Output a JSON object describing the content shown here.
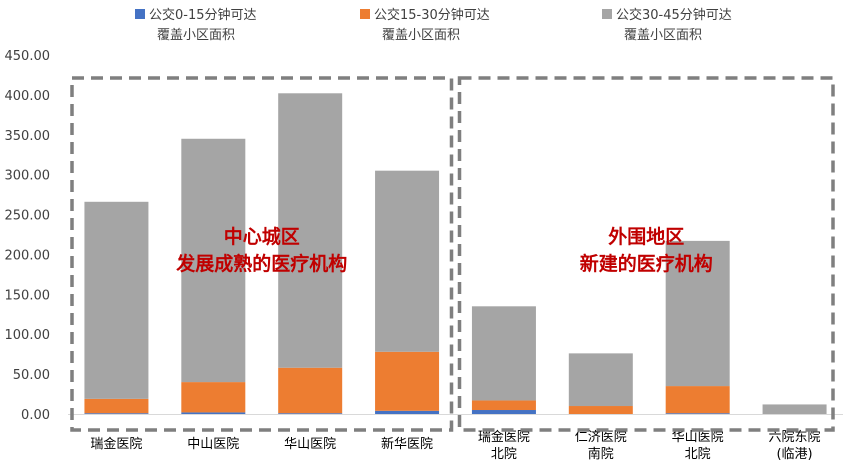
{
  "chart_data": {
    "type": "bar",
    "stacked": true,
    "categories": [
      [
        "瑞金医院"
      ],
      [
        "中山医院"
      ],
      [
        "华山医院"
      ],
      [
        "新华医院"
      ],
      [
        "瑞金医院",
        "北院"
      ],
      [
        "仁济医院",
        "南院"
      ],
      [
        "华山医院",
        "北院"
      ],
      [
        "六院东院",
        "(临港)"
      ]
    ],
    "series": [
      {
        "name": [
          "公交0-15分钟可达",
          "覆盖小区面积"
        ],
        "color": "#4472c4",
        "values": [
          1,
          2,
          1,
          4,
          5,
          0,
          1,
          0
        ]
      },
      {
        "name": [
          "公交15-30分钟可达",
          "覆盖小区面积"
        ],
        "color": "#ed7d31",
        "values": [
          18,
          38,
          57,
          74,
          12,
          10,
          34,
          0
        ]
      },
      {
        "name": [
          "公交30-45分钟可达",
          "覆盖小区面积"
        ],
        "color": "#a5a5a5",
        "values": [
          247,
          305,
          344,
          227,
          118,
          66,
          182,
          12
        ]
      }
    ],
    "ylim": [
      0,
      450
    ],
    "yticks": [
      "0.00",
      "50.00",
      "100.00",
      "150.00",
      "200.00",
      "250.00",
      "300.00",
      "350.00",
      "400.00",
      "450.00"
    ],
    "legend_position": "top",
    "annotations": [
      {
        "lines": [
          "中心城区",
          "发展成熟的医疗机构"
        ],
        "color": "#c00000",
        "groups": [
          0,
          3
        ]
      },
      {
        "lines": [
          "外围地区",
          "新建的医疗机构"
        ],
        "color": "#c00000",
        "groups": [
          4,
          7
        ]
      }
    ],
    "grid": false
  }
}
